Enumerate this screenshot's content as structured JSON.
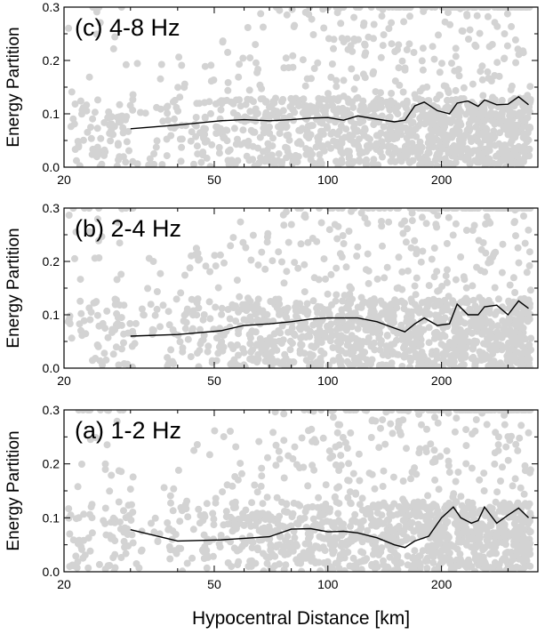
{
  "chart_data": [
    {
      "type": "scatter",
      "panel_label": "(c) 4-8 Hz",
      "ylabel": "Energy Partition",
      "xlabel": "",
      "xscale": "log",
      "xlim": [
        20,
        360
      ],
      "ylim": [
        0,
        0.3
      ],
      "x_ticks": [
        20,
        50,
        100,
        200
      ],
      "x_tick_labels": [
        "20",
        "50",
        "100",
        "200"
      ],
      "y_ticks": [
        0,
        0.1,
        0.2,
        0.3
      ],
      "y_tick_labels": [
        "0.0",
        "0.1",
        "0.2",
        "0.3"
      ],
      "series": [
        {
          "type": "scatter",
          "color": "#d3d3d3",
          "seed": 31,
          "description_values": "dense scatter, mostly 0-0.15, sparse to 0.3"
        },
        {
          "type": "line",
          "color": "#000000",
          "x": [
            30,
            40,
            52,
            60,
            70,
            80,
            90,
            100,
            110,
            120,
            135,
            150,
            160,
            170,
            180,
            195,
            210,
            220,
            235,
            250,
            260,
            280,
            300,
            320,
            340
          ],
          "y": [
            0.072,
            0.079,
            0.087,
            0.089,
            0.087,
            0.089,
            0.092,
            0.093,
            0.088,
            0.096,
            0.09,
            0.085,
            0.088,
            0.115,
            0.122,
            0.106,
            0.1,
            0.12,
            0.124,
            0.114,
            0.126,
            0.117,
            0.118,
            0.132,
            0.117
          ]
        }
      ]
    },
    {
      "type": "scatter",
      "panel_label": "(b) 2-4 Hz",
      "ylabel": "Energy Partition",
      "xlabel": "",
      "xscale": "log",
      "xlim": [
        20,
        360
      ],
      "ylim": [
        0,
        0.3
      ],
      "x_ticks": [
        20,
        50,
        100,
        200
      ],
      "x_tick_labels": [
        "20",
        "50",
        "100",
        "200"
      ],
      "y_ticks": [
        0,
        0.1,
        0.2,
        0.3
      ],
      "y_tick_labels": [
        "0.0",
        "0.1",
        "0.2",
        "0.3"
      ],
      "series": [
        {
          "type": "scatter",
          "color": "#d3d3d3",
          "seed": 17
        },
        {
          "type": "line",
          "color": "#000000",
          "x": [
            30,
            40,
            52,
            60,
            70,
            80,
            90,
            100,
            110,
            120,
            135,
            150,
            160,
            170,
            180,
            195,
            210,
            220,
            235,
            250,
            260,
            280,
            300,
            320,
            340
          ],
          "y": [
            0.06,
            0.063,
            0.07,
            0.08,
            0.083,
            0.087,
            0.092,
            0.094,
            0.094,
            0.094,
            0.087,
            0.075,
            0.068,
            0.083,
            0.094,
            0.08,
            0.083,
            0.12,
            0.1,
            0.1,
            0.115,
            0.118,
            0.1,
            0.126,
            0.112
          ]
        }
      ]
    },
    {
      "type": "scatter",
      "panel_label": "(a) 1-2 Hz",
      "ylabel": "Energy Partition",
      "xlabel": "Hypocentral Distance [km]",
      "xscale": "log",
      "xlim": [
        20,
        360
      ],
      "ylim": [
        0,
        0.3
      ],
      "x_ticks": [
        20,
        50,
        100,
        200
      ],
      "x_tick_labels": [
        "20",
        "50",
        "100",
        "200"
      ],
      "y_ticks": [
        0,
        0.1,
        0.2,
        0.3
      ],
      "y_tick_labels": [
        "0.0",
        "0.1",
        "0.2",
        "0.3"
      ],
      "series": [
        {
          "type": "scatter",
          "color": "#d3d3d3",
          "seed": 7
        },
        {
          "type": "line",
          "color": "#000000",
          "x": [
            30,
            40,
            52,
            60,
            70,
            80,
            90,
            100,
            110,
            120,
            135,
            150,
            160,
            170,
            185,
            200,
            215,
            225,
            240,
            250,
            260,
            280,
            300,
            320,
            340
          ],
          "y": [
            0.078,
            0.057,
            0.059,
            0.062,
            0.065,
            0.079,
            0.08,
            0.074,
            0.075,
            0.072,
            0.063,
            0.05,
            0.045,
            0.057,
            0.066,
            0.1,
            0.12,
            0.1,
            0.09,
            0.095,
            0.12,
            0.09,
            0.105,
            0.118,
            0.1
          ]
        }
      ]
    }
  ]
}
